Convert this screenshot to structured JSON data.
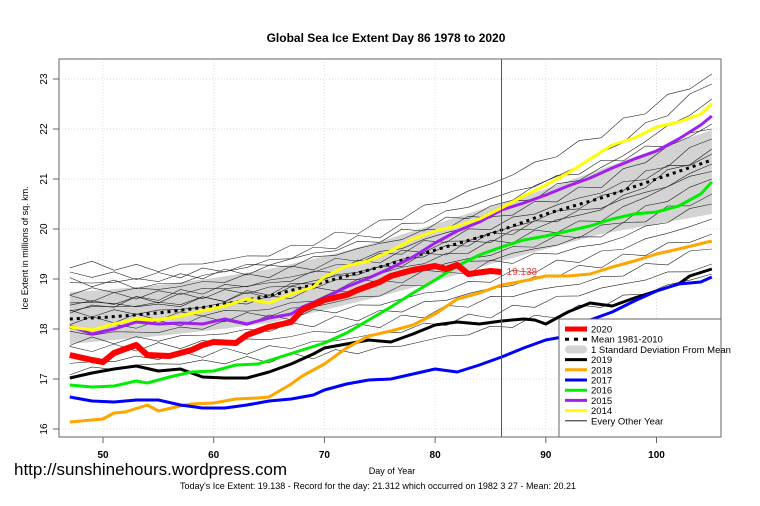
{
  "watermark": "http://sunshinehours.wordpress.com",
  "footer": "Today's Ice Extent: 19.138  - Record for the day: 21.312 which occurred on 1982 3 27  - Mean: 20.21",
  "chart_data": {
    "type": "line",
    "title": "Global Sea Ice Extent Day 86 1978 to 2020",
    "xlabel": "Day of Year",
    "ylabel": "Ice Extent in millions of sq. km.",
    "xlim": [
      45,
      106
    ],
    "ylim": [
      15.85,
      23.4
    ],
    "xticks": [
      50,
      60,
      70,
      80,
      90,
      100
    ],
    "yticks": [
      16,
      17,
      18,
      19,
      20,
      21,
      22,
      23
    ],
    "grid": true,
    "current_day": 86,
    "current_value_label": "19.138",
    "current_value": 19.138,
    "legend_position": "bottom-right",
    "legend": [
      {
        "label": "2020",
        "color": "#ff0000",
        "style": "thick"
      },
      {
        "label": "Mean 1981-2010",
        "color": "#000000",
        "style": "dashed"
      },
      {
        "label": "1 Standard Deviation From Mean",
        "color": "#d3d3d3",
        "style": "band"
      },
      {
        "label": "2019",
        "color": "#000000",
        "style": "line"
      },
      {
        "label": "2018",
        "color": "#ffa500",
        "style": "line"
      },
      {
        "label": "2017",
        "color": "#0000ff",
        "style": "line"
      },
      {
        "label": "2016",
        "color": "#00ee00",
        "style": "line"
      },
      {
        "label": "2015",
        "color": "#a020f0",
        "style": "line"
      },
      {
        "label": "2014",
        "color": "#ffff00",
        "style": "line"
      },
      {
        "label": "Every Other Year",
        "color": "#000000",
        "style": "thin"
      }
    ],
    "std_band": {
      "x": [
        47,
        50,
        55,
        60,
        65,
        70,
        75,
        80,
        85,
        90,
        95,
        100,
        105
      ],
      "upper": [
        18.74,
        18.78,
        18.88,
        19.02,
        19.2,
        19.45,
        19.75,
        20.1,
        20.45,
        20.8,
        21.2,
        21.6,
        21.98
      ],
      "lower": [
        17.7,
        17.76,
        17.86,
        17.98,
        18.12,
        18.38,
        18.65,
        18.95,
        19.3,
        19.6,
        19.9,
        20.1,
        20.3
      ]
    },
    "series": [
      {
        "name": "Mean 1981-2010",
        "color": "#000000",
        "width": 3,
        "dash": "3,4",
        "x": [
          47,
          50,
          55,
          60,
          65,
          70,
          75,
          80,
          85,
          90,
          95,
          100,
          105
        ],
        "values": [
          18.2,
          18.23,
          18.32,
          18.46,
          18.66,
          18.94,
          19.24,
          19.58,
          19.9,
          20.3,
          20.62,
          21.0,
          21.38
        ]
      },
      {
        "name": "2019",
        "color": "#000000",
        "width": 3,
        "x": [
          47,
          49,
          51,
          53,
          55,
          57,
          59,
          61,
          63,
          65,
          67,
          69,
          70,
          72,
          74,
          76,
          78,
          80,
          82,
          84,
          86,
          88,
          89,
          90,
          92,
          94,
          96,
          98,
          100,
          102,
          103,
          105
        ],
        "values": [
          17.02,
          17.12,
          17.2,
          17.26,
          17.16,
          17.2,
          17.04,
          17.02,
          17.02,
          17.14,
          17.3,
          17.5,
          17.62,
          17.7,
          17.78,
          17.74,
          17.9,
          18.08,
          18.14,
          18.1,
          18.16,
          18.2,
          18.18,
          18.1,
          18.34,
          18.52,
          18.46,
          18.62,
          18.76,
          18.9,
          19.06,
          19.2
        ]
      },
      {
        "name": "2018",
        "color": "#ffa500",
        "width": 3,
        "x": [
          47,
          49,
          50,
          51,
          52,
          54,
          55,
          57,
          58,
          60,
          62,
          64,
          65,
          67,
          68,
          70,
          72,
          74,
          76,
          78,
          80,
          82,
          84,
          86,
          88,
          90,
          92,
          94,
          96,
          98,
          100,
          102,
          105
        ],
        "values": [
          16.14,
          16.18,
          16.2,
          16.32,
          16.34,
          16.48,
          16.36,
          16.46,
          16.5,
          16.52,
          16.6,
          16.62,
          16.64,
          16.9,
          17.06,
          17.3,
          17.62,
          17.86,
          17.96,
          18.08,
          18.3,
          18.6,
          18.72,
          18.88,
          18.96,
          19.06,
          19.06,
          19.1,
          19.24,
          19.36,
          19.5,
          19.6,
          19.76
        ]
      },
      {
        "name": "2017",
        "color": "#0000ff",
        "width": 3,
        "x": [
          47,
          49,
          51,
          53,
          55,
          57,
          59,
          61,
          63,
          65,
          67,
          69,
          70,
          72,
          74,
          76,
          78,
          80,
          82,
          84,
          86,
          88,
          90,
          92,
          94,
          96,
          98,
          100,
          102,
          104,
          105
        ],
        "values": [
          16.64,
          16.56,
          16.54,
          16.58,
          16.58,
          16.48,
          16.42,
          16.42,
          16.48,
          16.56,
          16.6,
          16.68,
          16.78,
          16.9,
          16.98,
          17.0,
          17.1,
          17.2,
          17.14,
          17.28,
          17.44,
          17.62,
          17.78,
          17.86,
          18.18,
          18.34,
          18.56,
          18.76,
          18.9,
          18.94,
          19.04
        ]
      },
      {
        "name": "2016",
        "color": "#00ee00",
        "width": 3,
        "x": [
          47,
          49,
          51,
          53,
          54,
          56,
          58,
          60,
          62,
          64,
          66,
          68,
          70,
          72,
          74,
          76,
          78,
          80,
          82,
          84,
          86,
          88,
          90,
          92,
          94,
          96,
          98,
          100,
          102,
          104,
          105
        ],
        "values": [
          16.88,
          16.84,
          16.86,
          16.96,
          16.92,
          17.04,
          17.14,
          17.16,
          17.28,
          17.3,
          17.44,
          17.58,
          17.72,
          17.92,
          18.18,
          18.44,
          18.72,
          18.98,
          19.26,
          19.48,
          19.64,
          19.78,
          19.86,
          19.96,
          20.06,
          20.2,
          20.3,
          20.34,
          20.46,
          20.7,
          20.94
        ]
      },
      {
        "name": "2015",
        "color": "#a020f0",
        "width": 3,
        "x": [
          47,
          49,
          51,
          53,
          55,
          57,
          59,
          61,
          63,
          65,
          67,
          68,
          70,
          72,
          74,
          76,
          78,
          80,
          82,
          84,
          86,
          88,
          90,
          92,
          94,
          96,
          98,
          100,
          102,
          104,
          105
        ],
        "values": [
          18.06,
          17.9,
          18.0,
          18.14,
          18.1,
          18.12,
          18.1,
          18.2,
          18.1,
          18.22,
          18.3,
          18.44,
          18.62,
          18.84,
          19.02,
          19.22,
          19.44,
          19.72,
          19.96,
          20.14,
          20.38,
          20.52,
          20.68,
          20.86,
          21.02,
          21.22,
          21.4,
          21.56,
          21.8,
          22.08,
          22.26
        ]
      },
      {
        "name": "2014",
        "color": "#ffff00",
        "width": 3,
        "x": [
          47,
          49,
          51,
          53,
          55,
          57,
          59,
          61,
          63,
          65,
          67,
          69,
          70,
          72,
          74,
          76,
          78,
          80,
          82,
          84,
          86,
          88,
          90,
          92,
          94,
          96,
          98,
          100,
          102,
          104,
          105
        ],
        "values": [
          18.04,
          17.98,
          18.1,
          18.2,
          18.18,
          18.26,
          18.36,
          18.46,
          18.6,
          18.52,
          18.7,
          18.84,
          19.04,
          19.26,
          19.36,
          19.56,
          19.8,
          19.96,
          20.06,
          20.2,
          20.42,
          20.66,
          20.88,
          21.12,
          21.4,
          21.68,
          21.82,
          22.04,
          22.14,
          22.3,
          22.5
        ]
      },
      {
        "name": "2020",
        "color": "#ff0000",
        "width": 6,
        "x": [
          47,
          49,
          50,
          51,
          53,
          54,
          56,
          58,
          59,
          60,
          62,
          63,
          65,
          67,
          68,
          70,
          72,
          73,
          75,
          76,
          78,
          80,
          81,
          82,
          83,
          85,
          86
        ],
        "values": [
          17.48,
          17.38,
          17.34,
          17.52,
          17.68,
          17.48,
          17.46,
          17.58,
          17.68,
          17.74,
          17.72,
          17.88,
          18.04,
          18.14,
          18.38,
          18.58,
          18.68,
          18.78,
          18.94,
          19.06,
          19.18,
          19.26,
          19.2,
          19.28,
          19.1,
          19.16,
          19.14
        ]
      }
    ],
    "other_years_thin": [
      {
        "x": [
          47,
          55,
          65,
          75,
          85,
          95,
          105
        ],
        "values": [
          19.3,
          19.2,
          19.5,
          20.1,
          20.9,
          21.9,
          23.1
        ]
      },
      {
        "x": [
          47,
          55,
          65,
          75,
          85,
          95,
          105
        ],
        "values": [
          19.1,
          19.05,
          19.3,
          19.8,
          20.4,
          21.5,
          22.9
        ]
      },
      {
        "x": [
          47,
          55,
          65,
          75,
          85,
          95,
          105
        ],
        "values": [
          18.9,
          19.0,
          19.2,
          19.7,
          20.3,
          21.2,
          22.6
        ]
      },
      {
        "x": [
          47,
          55,
          65,
          75,
          85,
          95,
          105
        ],
        "values": [
          18.75,
          18.8,
          19.1,
          19.5,
          20.2,
          20.9,
          22.1
        ]
      },
      {
        "x": [
          47,
          55,
          65,
          75,
          85,
          95,
          105
        ],
        "values": [
          18.6,
          18.7,
          18.9,
          19.4,
          19.9,
          20.6,
          21.8
        ]
      },
      {
        "x": [
          47,
          55,
          65,
          75,
          85,
          95,
          105
        ],
        "values": [
          18.5,
          18.6,
          18.8,
          19.2,
          19.8,
          20.4,
          21.6
        ]
      },
      {
        "x": [
          47,
          55,
          65,
          75,
          85,
          95,
          105
        ],
        "values": [
          18.4,
          18.5,
          18.7,
          19.1,
          19.7,
          20.2,
          21.3
        ]
      },
      {
        "x": [
          47,
          55,
          65,
          75,
          85,
          95,
          105
        ],
        "values": [
          18.3,
          18.35,
          18.6,
          19.0,
          19.5,
          20.0,
          21.0
        ]
      },
      {
        "x": [
          47,
          55,
          65,
          75,
          85,
          95,
          105
        ],
        "values": [
          18.15,
          18.25,
          18.4,
          18.9,
          19.4,
          19.9,
          20.7
        ]
      },
      {
        "x": [
          47,
          55,
          65,
          75,
          85,
          95,
          105
        ],
        "values": [
          18.0,
          18.1,
          18.3,
          18.7,
          19.3,
          19.7,
          20.5
        ]
      },
      {
        "x": [
          47,
          55,
          65,
          75,
          85,
          95,
          105
        ],
        "values": [
          17.9,
          17.95,
          18.2,
          18.5,
          19.0,
          19.5,
          20.2
        ]
      },
      {
        "x": [
          47,
          55,
          65,
          75,
          85,
          95,
          105
        ],
        "values": [
          17.75,
          17.8,
          18.0,
          18.3,
          18.8,
          19.3,
          19.9
        ]
      },
      {
        "x": [
          47,
          55,
          65,
          75,
          85,
          95,
          105
        ],
        "values": [
          17.6,
          17.65,
          17.8,
          18.1,
          18.6,
          19.0,
          19.6
        ]
      },
      {
        "x": [
          47,
          55,
          65,
          75,
          85,
          95,
          105
        ],
        "values": [
          17.3,
          17.45,
          17.6,
          17.9,
          18.3,
          18.8,
          19.3
        ]
      },
      {
        "x": [
          47,
          55,
          65,
          75,
          85,
          95,
          105
        ],
        "values": [
          17.15,
          17.3,
          17.4,
          17.6,
          18.0,
          18.5,
          19.1
        ]
      },
      {
        "x": [
          47,
          55,
          65,
          75,
          85,
          95,
          105
        ],
        "values": [
          18.95,
          18.85,
          19.35,
          19.9,
          20.6,
          21.3,
          22.0
        ]
      },
      {
        "x": [
          47,
          55,
          65,
          75,
          85,
          95,
          105
        ],
        "values": [
          18.35,
          18.65,
          18.95,
          19.45,
          20.05,
          20.75,
          21.5
        ]
      },
      {
        "x": [
          47,
          55,
          65,
          75,
          85,
          95,
          105
        ],
        "values": [
          18.55,
          18.45,
          18.75,
          19.25,
          19.85,
          20.45,
          21.15
        ]
      }
    ]
  }
}
